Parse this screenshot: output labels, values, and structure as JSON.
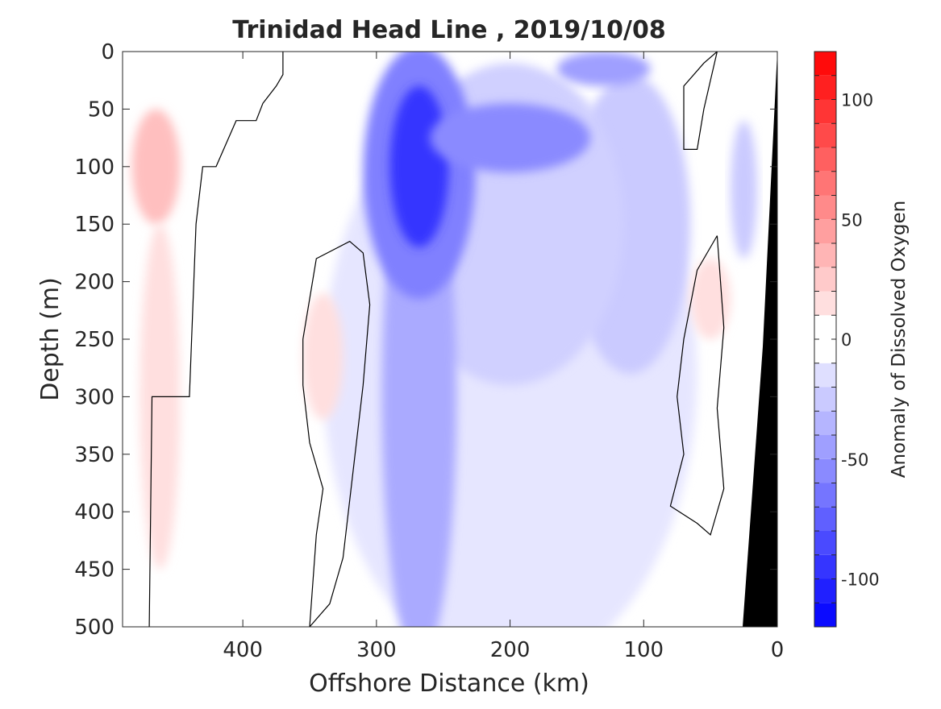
{
  "chart_data": {
    "type": "heatmap",
    "subtype": "filled-contour",
    "title": "Trinidad Head Line , 2019/10/08",
    "xlabel": "Offshore Distance (km)",
    "ylabel": "Depth (m)",
    "xlim": [
      490,
      0
    ],
    "ylim": [
      0,
      500
    ],
    "x_reversed": true,
    "y_reversed": true,
    "xticks": [
      400,
      300,
      200,
      100,
      0
    ],
    "yticks": [
      0,
      50,
      100,
      150,
      200,
      250,
      300,
      350,
      400,
      450,
      500
    ],
    "colorbar": {
      "label": "Anomaly of Dissolved Oxygen",
      "range": [
        -120,
        120
      ],
      "level_step": 10,
      "ticks": [
        100,
        50,
        0,
        -50,
        -100
      ],
      "colormap": "blue-white-red",
      "zero_contour_color": "#000000"
    },
    "seafloor_color": "#000000",
    "features": [
      {
        "kind": "positive",
        "center_km": 465,
        "depth_range_m": [
          50,
          150
        ],
        "max_value": 30
      },
      {
        "kind": "positive",
        "center_km": 462,
        "depth_range_m": [
          150,
          450
        ],
        "max_value": 15
      },
      {
        "kind": "positive",
        "center_km": 340,
        "depth_range_m": [
          210,
          320
        ],
        "max_value": 15
      },
      {
        "kind": "minimum",
        "center_km": 268,
        "depth_m": 100,
        "min_value": -105
      },
      {
        "kind": "negative",
        "center_km": 200,
        "depth_range_m": [
          50,
          500
        ],
        "min_value": -40
      },
      {
        "kind": "negative",
        "center_km": 110,
        "depth_range_m": [
          50,
          250
        ],
        "min_value": -40
      },
      {
        "kind": "positive",
        "center_km": 50,
        "depth_range_m": [
          180,
          250
        ],
        "max_value": 15
      }
    ]
  }
}
